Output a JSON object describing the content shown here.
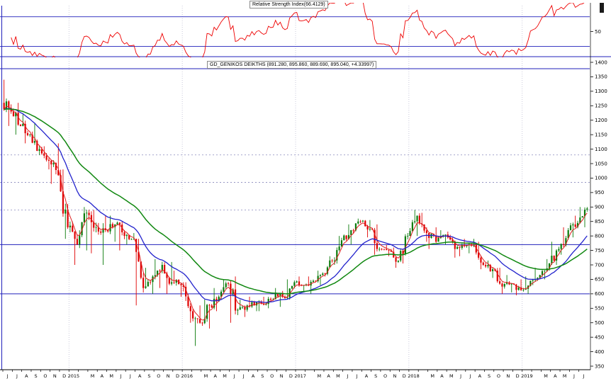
{
  "chart_data": {
    "type": "candlestick",
    "title": "GD_GENIKOS DEIKTHS (891.280, 895.860, 889.690, 895.040, +4.33997)",
    "quote": {
      "open": 891.28,
      "high": 895.86,
      "low": 889.69,
      "close": 895.04,
      "change": "+4.33997"
    },
    "first_open": 1260,
    "colors": {
      "up_bar": "#0a7a0a",
      "down_bar": "#e00000",
      "support_solid": "#2020bb",
      "support_dashed": "#8888bb",
      "axis": "#000000"
    },
    "panels": {
      "rsi": {
        "title": "Relative Strength Index(66.4129)",
        "current": 66.4129,
        "line_color": "#ee0000",
        "levels": [
          70,
          30
        ],
        "axis_labels": [
          "50"
        ],
        "range": [
          20,
          85
        ],
        "period": 9
      },
      "price": {
        "y_min": 350,
        "y_max": 1400,
        "y_step": 50,
        "support_lines": [
          {
            "value": 1378,
            "style": "solid"
          },
          {
            "value": 1080,
            "style": "dashed"
          },
          {
            "value": 985,
            "style": "dashed"
          },
          {
            "value": 890,
            "style": "dashed"
          },
          {
            "value": 770,
            "style": "solid"
          },
          {
            "value": 600,
            "style": "solid"
          }
        ],
        "ma": [
          {
            "period": 4,
            "color": "#dd2222",
            "width": 1.0
          },
          {
            "period": 20,
            "color": "#2222cc",
            "width": 1.3
          },
          {
            "period": 45,
            "color": "#118811",
            "width": 1.5
          }
        ]
      }
    },
    "months": [
      {
        "m": "J",
        "hi": 1340,
        "lo": 1180,
        "cl": 1230
      },
      {
        "m": "J",
        "hi": 1260,
        "lo": 1150,
        "cl": 1180
      },
      {
        "m": "A",
        "hi": 1220,
        "lo": 1120,
        "cl": 1150
      },
      {
        "m": "S",
        "hi": 1190,
        "lo": 1080,
        "cl": 1100
      },
      {
        "m": "O",
        "hi": 1110,
        "lo": 1030,
        "cl": 1060
      },
      {
        "m": "N",
        "hi": 1120,
        "lo": 980,
        "cl": 1010
      },
      {
        "m": "D",
        "hi": 1030,
        "lo": 790,
        "cl": 830
      },
      {
        "m": "2015",
        "hi": 850,
        "lo": 700,
        "cl": 770
      },
      {
        "m": "",
        "hi": 900,
        "lo": 750,
        "cl": 880
      },
      {
        "m": "M",
        "hi": 890,
        "lo": 740,
        "cl": 830
      },
      {
        "m": "A",
        "hi": 870,
        "lo": 700,
        "cl": 820
      },
      {
        "m": "M",
        "hi": 870,
        "lo": 780,
        "cl": 840
      },
      {
        "m": "J",
        "hi": 850,
        "lo": 750,
        "cl": 800
      },
      {
        "m": "J",
        "hi": 810,
        "lo": 770,
        "cl": 790
      },
      {
        "m": "A",
        "hi": 790,
        "lo": 560,
        "cl": 620
      },
      {
        "m": "S",
        "hi": 690,
        "lo": 600,
        "cl": 660
      },
      {
        "m": "O",
        "hi": 720,
        "lo": 620,
        "cl": 700
      },
      {
        "m": "N",
        "hi": 710,
        "lo": 600,
        "cl": 640
      },
      {
        "m": "D",
        "hi": 680,
        "lo": 590,
        "cl": 630
      },
      {
        "m": "2016",
        "hi": 640,
        "lo": 500,
        "cl": 540
      },
      {
        "m": "",
        "hi": 560,
        "lo": 420,
        "cl": 500
      },
      {
        "m": "M",
        "hi": 580,
        "lo": 480,
        "cl": 560
      },
      {
        "m": "A",
        "hi": 620,
        "lo": 540,
        "cl": 590
      },
      {
        "m": "M",
        "hi": 650,
        "lo": 580,
        "cl": 635
      },
      {
        "m": "J",
        "hi": 660,
        "lo": 500,
        "cl": 545
      },
      {
        "m": "J",
        "hi": 580,
        "lo": 520,
        "cl": 560
      },
      {
        "m": "A",
        "hi": 590,
        "lo": 540,
        "cl": 570
      },
      {
        "m": "S",
        "hi": 590,
        "lo": 540,
        "cl": 565
      },
      {
        "m": "O",
        "hi": 620,
        "lo": 550,
        "cl": 600
      },
      {
        "m": "N",
        "hi": 610,
        "lo": 555,
        "cl": 585
      },
      {
        "m": "D",
        "hi": 650,
        "lo": 580,
        "cl": 640
      },
      {
        "m": "2017",
        "hi": 660,
        "lo": 610,
        "cl": 630
      },
      {
        "m": "",
        "hi": 660,
        "lo": 600,
        "cl": 645
      },
      {
        "m": "M",
        "hi": 680,
        "lo": 630,
        "cl": 670
      },
      {
        "m": "A",
        "hi": 730,
        "lo": 660,
        "cl": 715
      },
      {
        "m": "M",
        "hi": 800,
        "lo": 700,
        "cl": 785
      },
      {
        "m": "J",
        "hi": 840,
        "lo": 770,
        "cl": 820
      },
      {
        "m": "J",
        "hi": 860,
        "lo": 810,
        "cl": 850
      },
      {
        "m": "A",
        "hi": 855,
        "lo": 795,
        "cl": 825
      },
      {
        "m": "S",
        "hi": 840,
        "lo": 735,
        "cl": 755
      },
      {
        "m": "O",
        "hi": 770,
        "lo": 730,
        "cl": 750
      },
      {
        "m": "N",
        "hi": 760,
        "lo": 690,
        "cl": 715
      },
      {
        "m": "D",
        "hi": 810,
        "lo": 705,
        "cl": 800
      },
      {
        "m": "2018",
        "hi": 890,
        "lo": 800,
        "cl": 870
      },
      {
        "m": "",
        "hi": 880,
        "lo": 780,
        "cl": 810
      },
      {
        "m": "M",
        "hi": 830,
        "lo": 755,
        "cl": 780
      },
      {
        "m": "A",
        "hi": 820,
        "lo": 770,
        "cl": 805
      },
      {
        "m": "M",
        "hi": 815,
        "lo": 725,
        "cl": 755
      },
      {
        "m": "J",
        "hi": 790,
        "lo": 730,
        "cl": 765
      },
      {
        "m": "J",
        "hi": 790,
        "lo": 740,
        "cl": 770
      },
      {
        "m": "A",
        "hi": 780,
        "lo": 685,
        "cl": 700
      },
      {
        "m": "S",
        "hi": 715,
        "lo": 655,
        "cl": 685
      },
      {
        "m": "O",
        "hi": 690,
        "lo": 600,
        "cl": 625
      },
      {
        "m": "N",
        "hi": 665,
        "lo": 605,
        "cl": 635
      },
      {
        "m": "D",
        "hi": 650,
        "lo": 595,
        "cl": 613
      },
      {
        "m": "2019",
        "hi": 660,
        "lo": 600,
        "cl": 645
      },
      {
        "m": "",
        "hi": 690,
        "lo": 630,
        "cl": 665
      },
      {
        "m": "M",
        "hi": 720,
        "lo": 650,
        "cl": 705
      },
      {
        "m": "A",
        "hi": 780,
        "lo": 700,
        "cl": 755
      },
      {
        "m": "M",
        "hi": 830,
        "lo": 735,
        "cl": 820
      },
      {
        "m": "J",
        "hi": 870,
        "lo": 795,
        "cl": 845
      },
      {
        "m": "J",
        "hi": 900,
        "lo": 830,
        "cl": 895
      }
    ]
  }
}
